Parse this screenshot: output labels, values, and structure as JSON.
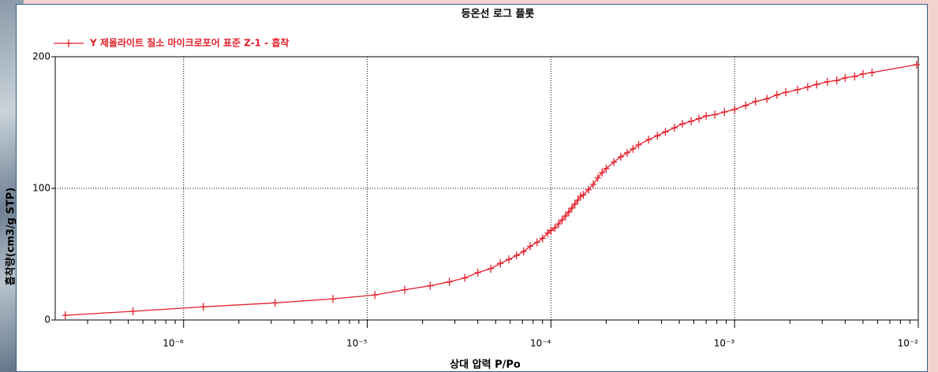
{
  "chart_data": {
    "type": "line",
    "title": "등온선 로그 플롯",
    "x_label": "상대 압력 P/Po",
    "y_label": "흡착량(cm3/g STP)",
    "xscale": "log",
    "xlim": [
      2e-07,
      0.01
    ],
    "ylim": [
      0,
      200
    ],
    "xticks": [
      {
        "value": 1e-06,
        "label": "10⁻⁶"
      },
      {
        "value": 1e-05,
        "label": "10⁻⁵"
      },
      {
        "value": 0.0001,
        "label": "10⁻⁴"
      },
      {
        "value": 0.001,
        "label": "10⁻³"
      },
      {
        "value": 0.01,
        "label": "10⁻²"
      }
    ],
    "minor_xticks": [
      3e-07,
      4e-07,
      5e-07,
      6e-07,
      7e-07,
      8e-07,
      9e-07,
      2e-06,
      3e-06,
      4e-06,
      5e-06,
      6e-06,
      7e-06,
      8e-06,
      9e-06,
      2e-05,
      3e-05,
      4e-05,
      5e-05,
      6e-05,
      7e-05,
      8e-05,
      9e-05,
      0.0002,
      0.0003,
      0.0004,
      0.0005,
      0.0006,
      0.0007,
      0.0008,
      0.0009,
      0.002,
      0.003,
      0.004,
      0.005,
      0.006,
      0.007,
      0.008,
      0.009
    ],
    "yticks": [
      0,
      100,
      200
    ],
    "grid": true,
    "legend": "top-left",
    "series": [
      {
        "name": "Y 제올라이트 질소 마이크로포어 표준 Z-1 - 흡착",
        "color": "#e3202b",
        "x": [
          2.27e-07,
          5.3e-07,
          1.28e-06,
          3.15e-06,
          6.5e-06,
          1.1e-05,
          1.6e-05,
          2.2e-05,
          2.8e-05,
          3.4e-05,
          4e-05,
          4.7e-05,
          5.3e-05,
          5.9e-05,
          6.5e-05,
          7.1e-05,
          7.7e-05,
          8.4e-05,
          9e-05,
          9.6e-05,
          0.0001,
          0.000105,
          0.00011,
          0.000115,
          0.00012,
          0.000125,
          0.00013,
          0.000135,
          0.00014,
          0.000145,
          0.00015,
          0.00016,
          0.00017,
          0.00018,
          0.00019,
          0.0002,
          0.00022,
          0.00024,
          0.00026,
          0.00028,
          0.0003,
          0.00034,
          0.00038,
          0.00042,
          0.00047,
          0.00052,
          0.00058,
          0.00064,
          0.0007,
          0.00078,
          0.00088,
          0.001,
          0.00115,
          0.0013,
          0.0015,
          0.0017,
          0.0019,
          0.0022,
          0.0025,
          0.0028,
          0.0032,
          0.0036,
          0.004,
          0.0045,
          0.005,
          0.0056,
          0.0098
        ],
        "values": [
          3.6,
          6.6,
          10,
          13,
          16,
          19,
          23,
          26,
          29,
          32,
          36,
          39,
          43,
          46,
          49,
          52,
          56,
          59,
          62,
          66,
          68,
          70,
          73,
          76,
          79,
          82,
          85,
          88,
          91,
          94,
          95,
          99,
          103,
          108,
          112,
          115,
          120,
          124,
          127,
          130,
          133,
          137,
          140,
          143,
          146,
          149,
          151,
          153,
          155,
          156,
          158,
          160,
          163,
          166,
          168,
          171,
          173,
          175,
          177,
          179,
          181,
          182,
          184,
          185,
          187,
          188,
          194
        ]
      }
    ]
  }
}
